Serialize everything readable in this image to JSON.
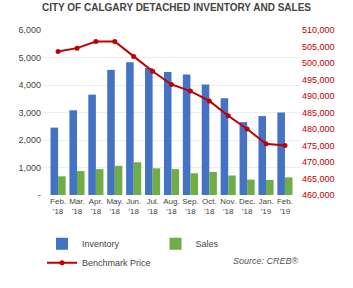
{
  "chart_data": {
    "type": "bar",
    "title": "CITY OF CALGARY DETACHED INVENTORY AND SALES",
    "categories": [
      "Feb.\n'18",
      "Mar.\n'18",
      "Apr.\n'18",
      "May.\n'18",
      "Jun.\n'18",
      "Jul.\n'18",
      "Aug.\n'18",
      "Sep.\n'18",
      "Oct.\n'18",
      "Nov.\n'18",
      "Dec.\n'18",
      "Jan.\n'19",
      "Feb.\n'19"
    ],
    "series": [
      {
        "name": "Inventory",
        "color": "#4472C4",
        "values": [
          2450,
          3080,
          3650,
          4550,
          4830,
          4620,
          4470,
          4380,
          4020,
          3520,
          2650,
          2870,
          3000
        ]
      },
      {
        "name": "Sales",
        "color": "#70AD47",
        "values": [
          680,
          870,
          940,
          1060,
          1190,
          970,
          940,
          790,
          840,
          710,
          560,
          550,
          640
        ]
      },
      {
        "name": "Benchmark Price",
        "type": "line",
        "axis": "y2",
        "color": "#C00000",
        "marker": "circle",
        "values": [
          503500,
          504500,
          506500,
          506500,
          502000,
          497500,
          493500,
          491500,
          488500,
          484000,
          480000,
          475500,
          475000
        ]
      }
    ],
    "ylim": [
      0,
      6000
    ],
    "yticks": [
      {
        "value": 0,
        "label": "-"
      },
      {
        "value": 1000,
        "label": "1,000"
      },
      {
        "value": 2000,
        "label": "2,000"
      },
      {
        "value": 3000,
        "label": "3,000"
      },
      {
        "value": 4000,
        "label": "4,000"
      },
      {
        "value": 5000,
        "label": "5,000"
      },
      {
        "value": 6000,
        "label": "6,000"
      }
    ],
    "y2lim": [
      460000,
      510000
    ],
    "y2ticks": [
      {
        "value": 460000,
        "label": "460,000"
      },
      {
        "value": 465000,
        "label": "465,000"
      },
      {
        "value": 470000,
        "label": "470,000"
      },
      {
        "value": 475000,
        "label": "475,000"
      },
      {
        "value": 480000,
        "label": "480,000"
      },
      {
        "value": 485000,
        "label": "485,000"
      },
      {
        "value": 490000,
        "label": "490,000"
      },
      {
        "value": 495000,
        "label": "495,000"
      },
      {
        "value": 500000,
        "label": "500,000"
      },
      {
        "value": 505000,
        "label": "505,000"
      },
      {
        "value": 510000,
        "label": "510,000"
      }
    ],
    "grid": true,
    "legend": "lower left",
    "annotations": [
      "Source: CREB®"
    ]
  }
}
